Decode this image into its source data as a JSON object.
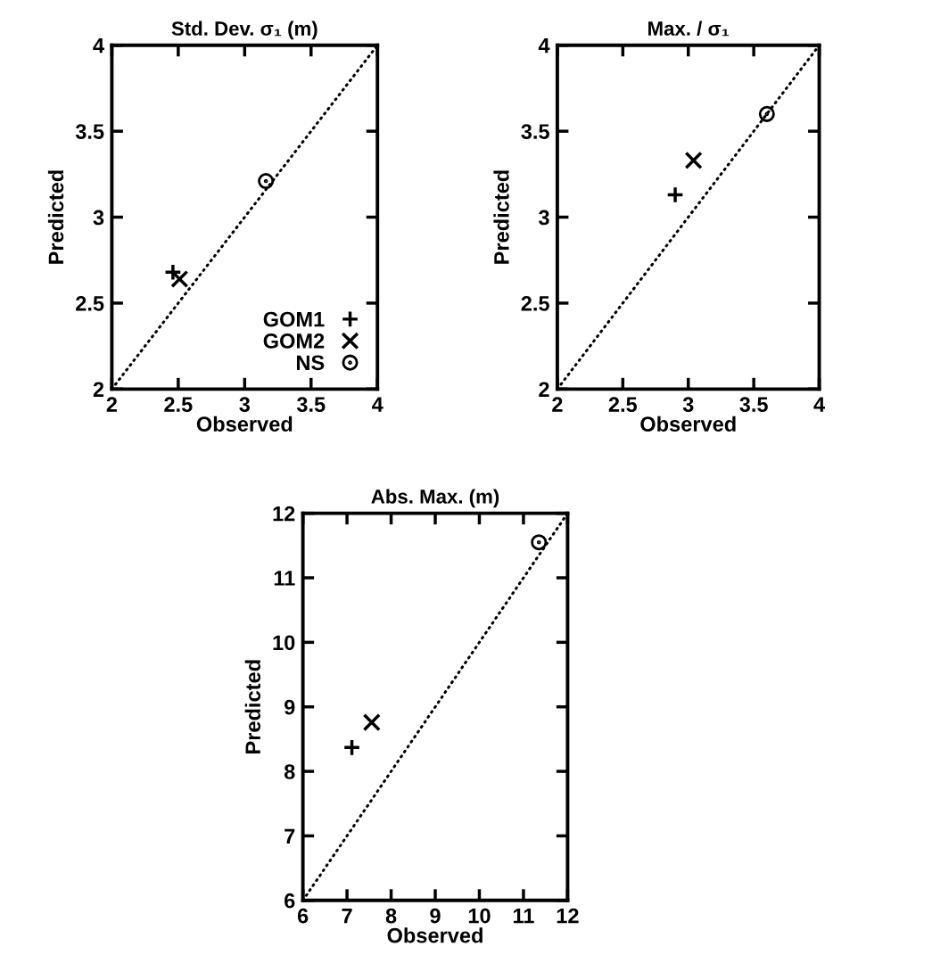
{
  "chart_data": [
    {
      "type": "scatter",
      "title": "Std. Dev. σ₁ (m)",
      "xlabel": "Observed",
      "ylabel": "Predicted",
      "xlim": [
        2,
        4
      ],
      "ylim": [
        2,
        4
      ],
      "xticks": [
        2,
        2.5,
        3,
        3.5,
        4
      ],
      "yticks": [
        2,
        2.5,
        3,
        3.5,
        4
      ],
      "grid": false,
      "legend": "bottom right",
      "series": [
        {
          "type": "line",
          "x": [
            2,
            4
          ],
          "values": [
            2,
            4
          ],
          "color": "#000000",
          "line_style": "dotted",
          "marker": "none"
        },
        {
          "name": "GOM1",
          "x": [
            2.46
          ],
          "values": [
            2.68
          ],
          "color": "#000000",
          "marker": "plus"
        },
        {
          "name": "GOM2",
          "x": [
            2.51
          ],
          "values": [
            2.64
          ],
          "color": "#000000",
          "marker": "cross"
        },
        {
          "name": "NS",
          "x": [
            3.16
          ],
          "values": [
            3.21
          ],
          "color": "#000000",
          "marker": "circle"
        }
      ]
    },
    {
      "type": "scatter",
      "title": "Max. / σ₁",
      "xlabel": "Observed",
      "ylabel": "Predicted",
      "xlim": [
        2,
        4
      ],
      "ylim": [
        2,
        4
      ],
      "xticks": [
        2,
        2.5,
        3,
        3.5,
        4
      ],
      "yticks": [
        2,
        2.5,
        3,
        3.5,
        4
      ],
      "grid": false,
      "series": [
        {
          "type": "line",
          "x": [
            2,
            4
          ],
          "values": [
            2,
            4
          ],
          "color": "#000000",
          "line_style": "dotted",
          "marker": "none"
        },
        {
          "x": [
            2.9
          ],
          "values": [
            3.13
          ],
          "color": "#000000",
          "marker": "plus"
        },
        {
          "x": [
            3.04
          ],
          "values": [
            3.33
          ],
          "color": "#000000",
          "marker": "cross"
        },
        {
          "x": [
            3.6
          ],
          "values": [
            3.6
          ],
          "color": "#000000",
          "marker": "circle"
        }
      ]
    },
    {
      "type": "scatter",
      "title": "Abs. Max. (m)",
      "xlabel": "Observed",
      "ylabel": "Predicted",
      "xlim": [
        6,
        12
      ],
      "ylim": [
        6,
        12
      ],
      "xticks": [
        6,
        7,
        8,
        9,
        10,
        11,
        12
      ],
      "yticks": [
        6,
        7,
        8,
        9,
        10,
        11,
        12
      ],
      "grid": false,
      "series": [
        {
          "type": "line",
          "x": [
            6,
            12
          ],
          "values": [
            6,
            12
          ],
          "color": "#000000",
          "line_style": "dotted",
          "marker": "none"
        },
        {
          "x": [
            7.11
          ],
          "values": [
            8.37
          ],
          "color": "#000000",
          "marker": "plus"
        },
        {
          "x": [
            7.56
          ],
          "values": [
            8.76
          ],
          "color": "#000000",
          "marker": "cross"
        },
        {
          "x": [
            11.35
          ],
          "values": [
            11.55
          ],
          "color": "#000000",
          "marker": "circle"
        }
      ]
    }
  ]
}
